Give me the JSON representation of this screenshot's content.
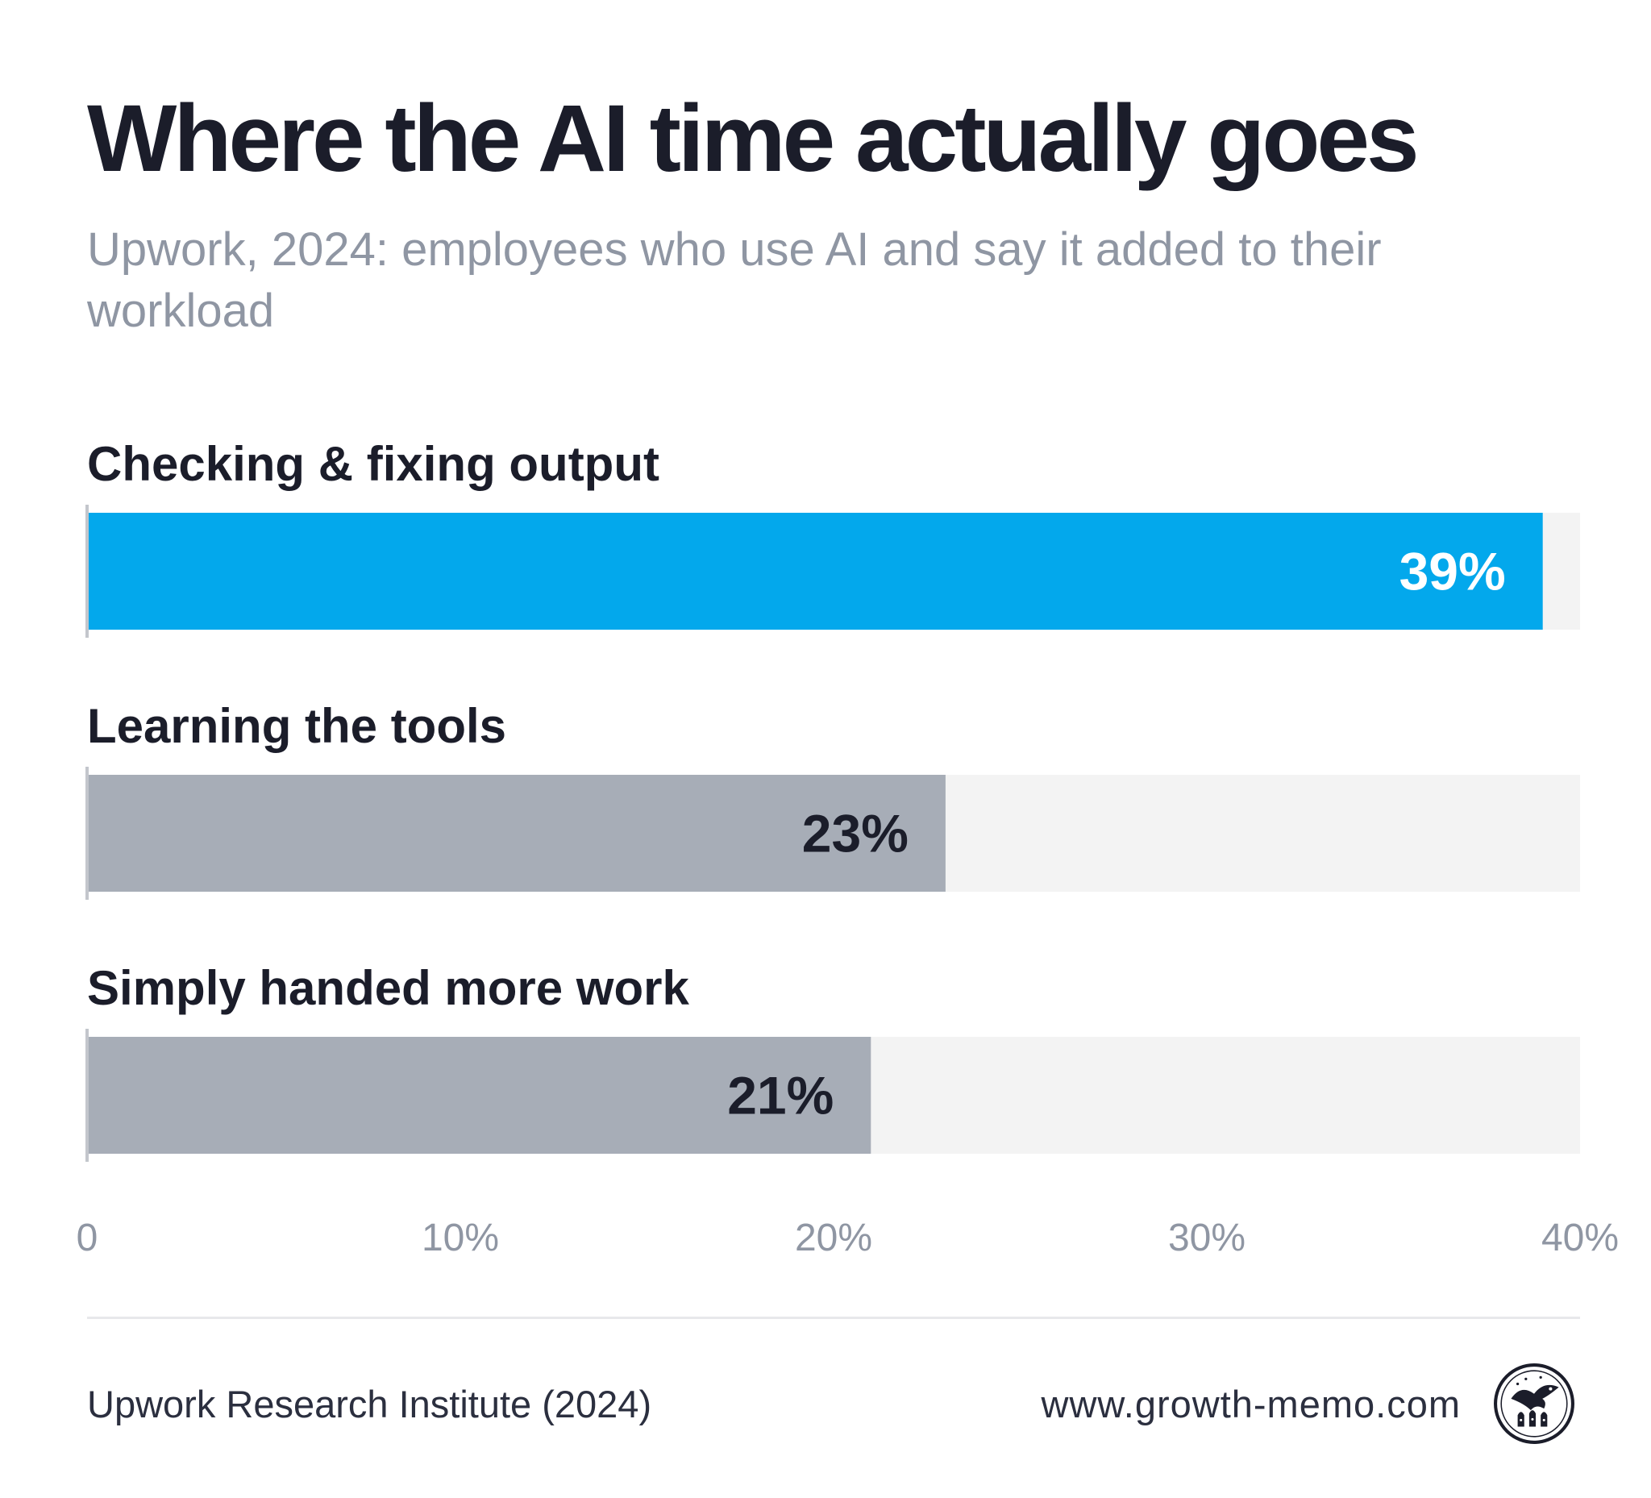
{
  "header": {
    "title": "Where the AI time actually goes",
    "subtitle": "Upwork, 2024: employees who use AI and say it added to their workload"
  },
  "chart_data": {
    "type": "bar",
    "orientation": "horizontal",
    "categories": [
      "Checking & fixing output",
      "Learning the tools",
      "Simply handed more work"
    ],
    "values": [
      39,
      23,
      21
    ],
    "value_labels": [
      "39%",
      "23%",
      "21%"
    ],
    "xlim": [
      0,
      40
    ],
    "ticks": [
      0,
      10,
      20,
      30,
      40
    ],
    "tick_labels": [
      "0",
      "10%",
      "20%",
      "30%",
      "40%"
    ],
    "colors": {
      "highlight": "#03a8ec",
      "default": "#a7adb7",
      "track": "#f3f3f3",
      "highlight_text": "#ffffff",
      "default_text": "#1b1d2a"
    },
    "highlight_index": 0,
    "grid": false
  },
  "footer": {
    "source": "Upwork Research Institute (2024)",
    "website": "www.growth-memo.com",
    "logo_icon": "bird-emblem-icon"
  }
}
